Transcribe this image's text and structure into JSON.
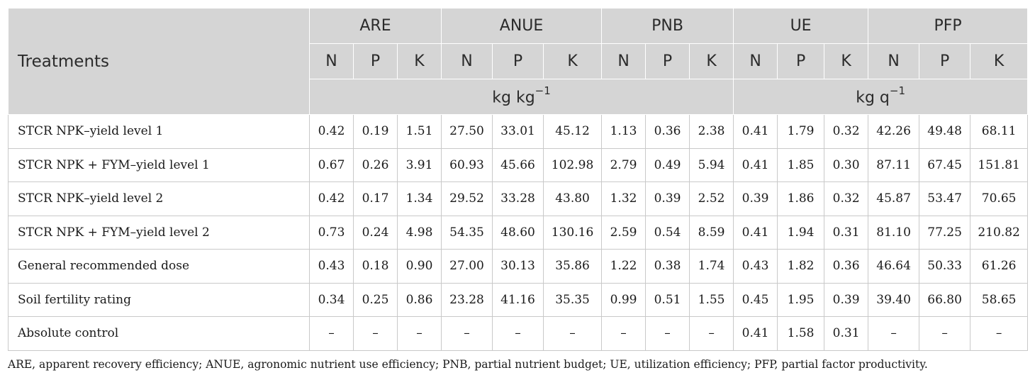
{
  "header": {
    "treatments": "Treatments",
    "groups": [
      "ARE",
      "ANUE",
      "PNB",
      "UE",
      "PFP"
    ],
    "sub": [
      "N",
      "P",
      "K"
    ],
    "unit_kg_kg": "kg kg",
    "unit_kg_kg_exp": "−1",
    "unit_kg_q": "kg q",
    "unit_kg_q_exp": "−1"
  },
  "rows": [
    {
      "treatment": "STCR NPK–yield level 1",
      "values": [
        "0.42",
        "0.19",
        "1.51",
        "27.50",
        "33.01",
        "45.12",
        "1.13",
        "0.36",
        "2.38",
        "0.41",
        "1.79",
        "0.32",
        "42.26",
        "49.48",
        "68.11"
      ]
    },
    {
      "treatment": "STCR NPK + FYM–yield level 1",
      "values": [
        "0.67",
        "0.26",
        "3.91",
        "60.93",
        "45.66",
        "102.98",
        "2.79",
        "0.49",
        "5.94",
        "0.41",
        "1.85",
        "0.30",
        "87.11",
        "67.45",
        "151.81"
      ]
    },
    {
      "treatment": "STCR NPK–yield level 2",
      "values": [
        "0.42",
        "0.17",
        "1.34",
        "29.52",
        "33.28",
        "43.80",
        "1.32",
        "0.39",
        "2.52",
        "0.39",
        "1.86",
        "0.32",
        "45.87",
        "53.47",
        "70.65"
      ]
    },
    {
      "treatment": "STCR NPK + FYM–yield level 2",
      "values": [
        "0.73",
        "0.24",
        "4.98",
        "54.35",
        "48.60",
        "130.16",
        "2.59",
        "0.54",
        "8.59",
        "0.41",
        "1.94",
        "0.31",
        "81.10",
        "77.25",
        "210.82"
      ]
    },
    {
      "treatment": "General recommended dose",
      "values": [
        "0.43",
        "0.18",
        "0.90",
        "27.00",
        "30.13",
        "35.86",
        "1.22",
        "0.38",
        "1.74",
        "0.43",
        "1.82",
        "0.36",
        "46.64",
        "50.33",
        "61.26"
      ]
    },
    {
      "treatment": "Soil fertility rating",
      "values": [
        "0.34",
        "0.25",
        "0.86",
        "23.28",
        "41.16",
        "35.35",
        "0.99",
        "0.51",
        "1.55",
        "0.45",
        "1.95",
        "0.39",
        "39.40",
        "66.80",
        "58.65"
      ]
    },
    {
      "treatment": "Absolute control",
      "values": [
        "–",
        "–",
        "–",
        "–",
        "–",
        "–",
        "–",
        "–",
        "–",
        "0.41",
        "1.58",
        "0.31",
        "–",
        "–",
        "–"
      ]
    }
  ],
  "footnote": "ARE, apparent recovery efficiency; ANUE, agronomic nutrient use efficiency; PNB, partial nutrient budget; UE, utilization efficiency; PFP, partial factor productivity."
}
